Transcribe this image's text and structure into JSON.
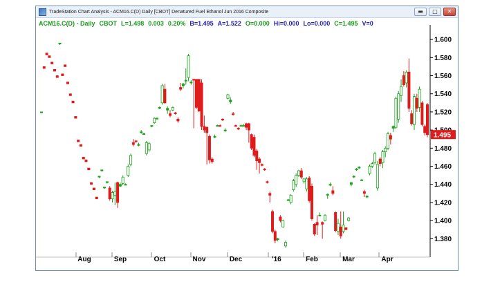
{
  "window": {
    "title": "TradeStation Chart Analysis - ACM16.C(D) Daily [CBOT] Denatured Fuel Ethanol Jun 2016 Composite",
    "controls": {
      "minimize": "▬",
      "maximize": "□",
      "close": "✕"
    }
  },
  "info": {
    "symbol": "ACM16.C(D) - Daily",
    "exchange": "CBOT",
    "last": "L=1.498",
    "change": "0.003",
    "pct": "0.20%",
    "bid": "B=1.495",
    "ask": "A=1.522",
    "open": "O=0.000",
    "high": "Hi=0.000",
    "low": "Lo=0.000",
    "close": "C=1.495",
    "volume": "V=0"
  },
  "colors": {
    "up": "#1aa31a",
    "down": "#e01b1b",
    "last_price_tag": "#e01b1b",
    "axis": "#000000"
  },
  "chart_data": {
    "type": "candlestick",
    "title": "",
    "ylim": [
      1.365,
      1.61
    ],
    "y_ticks": [
      "1.600",
      "1.580",
      "1.560",
      "1.540",
      "1.520",
      "1.500",
      "1.480",
      "1.460",
      "1.440",
      "1.420",
      "1.400",
      "1.380"
    ],
    "x_ticks": [
      "Aug",
      "Sep",
      "Oct",
      "Nov",
      "Dec",
      "'16",
      "Feb",
      "Mar",
      "Apr"
    ],
    "last_price_label": "1.495",
    "bars": [
      {
        "i": 0,
        "o": 1.52,
        "h": 1.52,
        "l": 1.52,
        "c": 1.52
      },
      {
        "i": 1,
        "o": 1.57,
        "h": 1.57,
        "l": 1.568,
        "c": 1.568
      },
      {
        "i": 2,
        "o": 1.585,
        "h": 1.585,
        "l": 1.583,
        "c": 1.583
      },
      {
        "i": 3,
        "o": 1.582,
        "h": 1.582,
        "l": 1.58,
        "c": 1.58
      },
      {
        "i": 4,
        "o": 1.575,
        "h": 1.575,
        "l": 1.573,
        "c": 1.573
      },
      {
        "i": 5,
        "o": 1.567,
        "h": 1.567,
        "l": 1.565,
        "c": 1.565
      },
      {
        "i": 6,
        "o": 1.56,
        "h": 1.56,
        "l": 1.558,
        "c": 1.558
      },
      {
        "i": 7,
        "o": 1.595,
        "h": 1.596,
        "l": 1.594,
        "c": 1.596
      },
      {
        "i": 8,
        "o": 1.562,
        "h": 1.562,
        "l": 1.56,
        "c": 1.56
      },
      {
        "i": 9,
        "o": 1.572,
        "h": 1.572,
        "l": 1.57,
        "c": 1.57
      },
      {
        "i": 10,
        "o": 1.553,
        "h": 1.553,
        "l": 1.551,
        "c": 1.551
      },
      {
        "i": 11,
        "o": 1.54,
        "h": 1.54,
        "l": 1.538,
        "c": 1.538
      },
      {
        "i": 12,
        "o": 1.532,
        "h": 1.532,
        "l": 1.53,
        "c": 1.53
      },
      {
        "i": 13,
        "o": 1.515,
        "h": 1.515,
        "l": 1.513,
        "c": 1.513
      },
      {
        "i": 14,
        "o": 1.489,
        "h": 1.489,
        "l": 1.487,
        "c": 1.487
      },
      {
        "i": 15,
        "o": 1.484,
        "h": 1.484,
        "l": 1.482,
        "c": 1.482
      },
      {
        "i": 16,
        "o": 1.47,
        "h": 1.47,
        "l": 1.468,
        "c": 1.468
      },
      {
        "i": 17,
        "o": 1.467,
        "h": 1.467,
        "l": 1.465,
        "c": 1.465
      },
      {
        "i": 18,
        "o": 1.458,
        "h": 1.458,
        "l": 1.456,
        "c": 1.456
      },
      {
        "i": 19,
        "o": 1.442,
        "h": 1.442,
        "l": 1.44,
        "c": 1.44
      },
      {
        "i": 20,
        "o": 1.436,
        "h": 1.436,
        "l": 1.434,
        "c": 1.434
      },
      {
        "i": 21,
        "o": 1.426,
        "h": 1.426,
        "l": 1.424,
        "c": 1.424
      },
      {
        "i": 22,
        "o": 1.448,
        "h": 1.449,
        "l": 1.447,
        "c": 1.449
      },
      {
        "i": 23,
        "o": 1.455,
        "h": 1.456,
        "l": 1.454,
        "c": 1.456
      },
      {
        "i": 24,
        "o": 1.436,
        "h": 1.437,
        "l": 1.435,
        "c": 1.437
      },
      {
        "i": 25,
        "o": 1.442,
        "h": 1.443,
        "l": 1.441,
        "c": 1.443
      },
      {
        "i": 26,
        "o": 1.436,
        "h": 1.438,
        "l": 1.422,
        "c": 1.424
      },
      {
        "i": 27,
        "o": 1.424,
        "h": 1.433,
        "l": 1.42,
        "c": 1.431
      },
      {
        "i": 28,
        "o": 1.428,
        "h": 1.442,
        "l": 1.417,
        "c": 1.432
      },
      {
        "i": 29,
        "o": 1.442,
        "h": 1.443,
        "l": 1.414,
        "c": 1.42
      },
      {
        "i": 30,
        "o": 1.438,
        "h": 1.442,
        "l": 1.437,
        "c": 1.44
      },
      {
        "i": 31,
        "o": 1.441,
        "h": 1.45,
        "l": 1.439,
        "c": 1.448
      },
      {
        "i": 32,
        "o": 1.44,
        "h": 1.441,
        "l": 1.439,
        "c": 1.44
      },
      {
        "i": 33,
        "o": 1.45,
        "h": 1.462,
        "l": 1.448,
        "c": 1.46
      },
      {
        "i": 34,
        "o": 1.462,
        "h": 1.474,
        "l": 1.46,
        "c": 1.472
      },
      {
        "i": 35,
        "o": 1.486,
        "h": 1.49,
        "l": 1.482,
        "c": 1.484
      },
      {
        "i": 36,
        "o": 1.488,
        "h": 1.489,
        "l": 1.486,
        "c": 1.487
      },
      {
        "i": 37,
        "o": 1.484,
        "h": 1.486,
        "l": 1.482,
        "c": 1.484
      },
      {
        "i": 38,
        "o": 1.498,
        "h": 1.5,
        "l": 1.496,
        "c": 1.498
      },
      {
        "i": 39,
        "o": 1.496,
        "h": 1.497,
        "l": 1.495,
        "c": 1.496
      },
      {
        "i": 40,
        "o": 1.474,
        "h": 1.488,
        "l": 1.472,
        "c": 1.486
      },
      {
        "i": 41,
        "o": 1.478,
        "h": 1.487,
        "l": 1.476,
        "c": 1.485
      },
      {
        "i": 42,
        "o": 1.504,
        "h": 1.505,
        "l": 1.503,
        "c": 1.505
      },
      {
        "i": 43,
        "o": 1.508,
        "h": 1.514,
        "l": 1.507,
        "c": 1.513
      },
      {
        "i": 44,
        "o": 1.513,
        "h": 1.514,
        "l": 1.512,
        "c": 1.513
      },
      {
        "i": 45,
        "o": 1.524,
        "h": 1.526,
        "l": 1.523,
        "c": 1.525
      },
      {
        "i": 46,
        "o": 1.53,
        "h": 1.551,
        "l": 1.528,
        "c": 1.549
      },
      {
        "i": 47,
        "o": 1.545,
        "h": 1.551,
        "l": 1.529,
        "c": 1.53
      },
      {
        "i": 48,
        "o": 1.522,
        "h": 1.526,
        "l": 1.518,
        "c": 1.524
      },
      {
        "i": 49,
        "o": 1.518,
        "h": 1.522,
        "l": 1.514,
        "c": 1.516
      },
      {
        "i": 50,
        "o": 1.522,
        "h": 1.526,
        "l": 1.521,
        "c": 1.525
      },
      {
        "i": 51,
        "o": 1.519,
        "h": 1.52,
        "l": 1.517,
        "c": 1.518
      },
      {
        "i": 52,
        "o": 1.512,
        "h": 1.514,
        "l": 1.508,
        "c": 1.51
      },
      {
        "i": 53,
        "o": 1.547,
        "h": 1.552,
        "l": 1.543,
        "c": 1.545
      },
      {
        "i": 54,
        "o": 1.549,
        "h": 1.552,
        "l": 1.546,
        "c": 1.551
      },
      {
        "i": 55,
        "o": 1.554,
        "h": 1.568,
        "l": 1.55,
        "c": 1.555
      },
      {
        "i": 56,
        "o": 1.558,
        "h": 1.584,
        "l": 1.554,
        "c": 1.582
      },
      {
        "i": 57,
        "o": 1.552,
        "h": 1.555,
        "l": 1.55,
        "c": 1.553
      },
      {
        "i": 58,
        "o": 1.556,
        "h": 1.556,
        "l": 1.502,
        "c": 1.555
      },
      {
        "i": 59,
        "o": 1.556,
        "h": 1.556,
        "l": 1.523,
        "c": 1.525
      },
      {
        "i": 60,
        "o": 1.556,
        "h": 1.556,
        "l": 1.52,
        "c": 1.521
      },
      {
        "i": 61,
        "o": 1.552,
        "h": 1.556,
        "l": 1.5,
        "c": 1.504
      },
      {
        "i": 62,
        "o": 1.504,
        "h": 1.516,
        "l": 1.497,
        "c": 1.5
      },
      {
        "i": 63,
        "o": 1.503,
        "h": 1.504,
        "l": 1.462,
        "c": 1.497
      },
      {
        "i": 64,
        "o": 1.493,
        "h": 1.495,
        "l": 1.463,
        "c": 1.467
      },
      {
        "i": 65,
        "o": 1.468,
        "h": 1.47,
        "l": 1.463,
        "c": 1.465
      },
      {
        "i": 66,
        "o": 1.493,
        "h": 1.495,
        "l": 1.491,
        "c": 1.493
      },
      {
        "i": 67,
        "o": 1.505,
        "h": 1.506,
        "l": 1.504,
        "c": 1.505
      },
      {
        "i": 68,
        "o": 1.505,
        "h": 1.506,
        "l": 1.504,
        "c": 1.504
      },
      {
        "i": 69,
        "o": 1.512,
        "h": 1.513,
        "l": 1.51,
        "c": 1.511
      },
      {
        "i": 70,
        "o": 1.5,
        "h": 1.502,
        "l": 1.498,
        "c": 1.5
      },
      {
        "i": 71,
        "o": 1.535,
        "h": 1.54,
        "l": 1.534,
        "c": 1.539
      },
      {
        "i": 72,
        "o": 1.531,
        "h": 1.536,
        "l": 1.529,
        "c": 1.533
      },
      {
        "i": 73,
        "o": 1.518,
        "h": 1.52,
        "l": 1.516,
        "c": 1.517
      },
      {
        "i": 74,
        "o": 1.505,
        "h": 1.506,
        "l": 1.504,
        "c": 1.504
      },
      {
        "i": 75,
        "o": 1.502,
        "h": 1.503,
        "l": 1.5,
        "c": 1.501
      },
      {
        "i": 76,
        "o": 1.505,
        "h": 1.506,
        "l": 1.504,
        "c": 1.505
      },
      {
        "i": 77,
        "o": 1.505,
        "h": 1.507,
        "l": 1.504,
        "c": 1.505
      },
      {
        "i": 78,
        "o": 1.507,
        "h": 1.508,
        "l": 1.5,
        "c": 1.503
      },
      {
        "i": 79,
        "o": 1.507,
        "h": 1.508,
        "l": 1.486,
        "c": 1.5
      },
      {
        "i": 80,
        "o": 1.495,
        "h": 1.496,
        "l": 1.478,
        "c": 1.48
      },
      {
        "i": 81,
        "o": 1.492,
        "h": 1.495,
        "l": 1.47,
        "c": 1.472
      },
      {
        "i": 82,
        "o": 1.477,
        "h": 1.479,
        "l": 1.456,
        "c": 1.466
      },
      {
        "i": 83,
        "o": 1.468,
        "h": 1.47,
        "l": 1.452,
        "c": 1.464
      },
      {
        "i": 84,
        "o": 1.462,
        "h": 1.463,
        "l": 1.46,
        "c": 1.461
      },
      {
        "i": 85,
        "o": 1.457,
        "h": 1.458,
        "l": 1.455,
        "c": 1.456
      },
      {
        "i": 86,
        "o": 1.443,
        "h": 1.444,
        "l": 1.441,
        "c": 1.442
      },
      {
        "i": 87,
        "o": 1.43,
        "h": 1.432,
        "l": 1.42,
        "c": 1.428
      },
      {
        "i": 88,
        "o": 1.41,
        "h": 1.412,
        "l": 1.386,
        "c": 1.388
      },
      {
        "i": 89,
        "o": 1.388,
        "h": 1.39,
        "l": 1.375,
        "c": 1.378
      },
      {
        "i": 90,
        "o": 1.379,
        "h": 1.381,
        "l": 1.377,
        "c": 1.38
      },
      {
        "i": 91,
        "o": 1.404,
        "h": 1.406,
        "l": 1.398,
        "c": 1.4
      },
      {
        "i": 92,
        "o": 1.393,
        "h": 1.401,
        "l": 1.392,
        "c": 1.4
      },
      {
        "i": 93,
        "o": 1.372,
        "h": 1.378,
        "l": 1.37,
        "c": 1.376
      },
      {
        "i": 94,
        "o": 1.423,
        "h": 1.424,
        "l": 1.422,
        "c": 1.423
      },
      {
        "i": 95,
        "o": 1.42,
        "h": 1.429,
        "l": 1.418,
        "c": 1.428
      },
      {
        "i": 96,
        "o": 1.434,
        "h": 1.446,
        "l": 1.432,
        "c": 1.444
      },
      {
        "i": 97,
        "o": 1.44,
        "h": 1.452,
        "l": 1.437,
        "c": 1.45
      },
      {
        "i": 98,
        "o": 1.45,
        "h": 1.456,
        "l": 1.448,
        "c": 1.455
      },
      {
        "i": 99,
        "o": 1.455,
        "h": 1.458,
        "l": 1.446,
        "c": 1.448
      },
      {
        "i": 100,
        "o": 1.443,
        "h": 1.447,
        "l": 1.441,
        "c": 1.446
      },
      {
        "i": 101,
        "o": 1.435,
        "h": 1.448,
        "l": 1.432,
        "c": 1.446
      },
      {
        "i": 102,
        "o": 1.447,
        "h": 1.449,
        "l": 1.42,
        "c": 1.422
      },
      {
        "i": 103,
        "o": 1.438,
        "h": 1.441,
        "l": 1.4,
        "c": 1.402
      },
      {
        "i": 104,
        "o": 1.396,
        "h": 1.397,
        "l": 1.383,
        "c": 1.385
      },
      {
        "i": 105,
        "o": 1.398,
        "h": 1.406,
        "l": 1.384,
        "c": 1.395
      },
      {
        "i": 106,
        "o": 1.406,
        "h": 1.409,
        "l": 1.405,
        "c": 1.406
      },
      {
        "i": 107,
        "o": 1.398,
        "h": 1.399,
        "l": 1.38,
        "c": 1.396
      },
      {
        "i": 108,
        "o": 1.4,
        "h": 1.407,
        "l": 1.399,
        "c": 1.406
      },
      {
        "i": 109,
        "o": 1.428,
        "h": 1.43,
        "l": 1.424,
        "c": 1.429
      },
      {
        "i": 110,
        "o": 1.44,
        "h": 1.442,
        "l": 1.438,
        "c": 1.44
      },
      {
        "i": 111,
        "o": 1.433,
        "h": 1.438,
        "l": 1.428,
        "c": 1.43
      },
      {
        "i": 112,
        "o": 1.409,
        "h": 1.41,
        "l": 1.387,
        "c": 1.389
      },
      {
        "i": 113,
        "o": 1.388,
        "h": 1.402,
        "l": 1.384,
        "c": 1.397
      },
      {
        "i": 114,
        "o": 1.393,
        "h": 1.41,
        "l": 1.38,
        "c": 1.383
      },
      {
        "i": 115,
        "o": 1.388,
        "h": 1.41,
        "l": 1.386,
        "c": 1.395
      },
      {
        "i": 116,
        "o": 1.392,
        "h": 1.393,
        "l": 1.39,
        "c": 1.39
      },
      {
        "i": 117,
        "o": 1.4,
        "h": 1.404,
        "l": 1.399,
        "c": 1.403
      },
      {
        "i": 118,
        "o": 1.44,
        "h": 1.442,
        "l": 1.438,
        "c": 1.442
      },
      {
        "i": 119,
        "o": 1.449,
        "h": 1.45,
        "l": 1.447,
        "c": 1.449
      },
      {
        "i": 120,
        "o": 1.457,
        "h": 1.458,
        "l": 1.455,
        "c": 1.457
      },
      {
        "i": 121,
        "o": 1.459,
        "h": 1.46,
        "l": 1.457,
        "c": 1.459
      },
      {
        "i": 122,
        "o": 1.445,
        "h": 1.446,
        "l": 1.444,
        "c": 1.445
      },
      {
        "i": 123,
        "o": 1.432,
        "h": 1.434,
        "l": 1.426,
        "c": 1.43
      },
      {
        "i": 124,
        "o": 1.426,
        "h": 1.428,
        "l": 1.425,
        "c": 1.427
      },
      {
        "i": 125,
        "o": 1.452,
        "h": 1.462,
        "l": 1.45,
        "c": 1.46
      },
      {
        "i": 126,
        "o": 1.46,
        "h": 1.465,
        "l": 1.458,
        "c": 1.463
      },
      {
        "i": 127,
        "o": 1.464,
        "h": 1.476,
        "l": 1.462,
        "c": 1.474
      },
      {
        "i": 128,
        "o": 1.436,
        "h": 1.466,
        "l": 1.433,
        "c": 1.462
      },
      {
        "i": 129,
        "o": 1.468,
        "h": 1.47,
        "l": 1.46,
        "c": 1.463
      },
      {
        "i": 130,
        "o": 1.464,
        "h": 1.478,
        "l": 1.458,
        "c": 1.476
      },
      {
        "i": 131,
        "o": 1.476,
        "h": 1.482,
        "l": 1.47,
        "c": 1.48
      },
      {
        "i": 132,
        "o": 1.48,
        "h": 1.498,
        "l": 1.478,
        "c": 1.496
      },
      {
        "i": 133,
        "o": 1.494,
        "h": 1.497,
        "l": 1.484,
        "c": 1.49
      },
      {
        "i": 134,
        "o": 1.502,
        "h": 1.505,
        "l": 1.498,
        "c": 1.504
      },
      {
        "i": 135,
        "o": 1.503,
        "h": 1.537,
        "l": 1.501,
        "c": 1.535
      },
      {
        "i": 136,
        "o": 1.512,
        "h": 1.543,
        "l": 1.508,
        "c": 1.54
      },
      {
        "i": 137,
        "o": 1.538,
        "h": 1.556,
        "l": 1.531,
        "c": 1.548
      },
      {
        "i": 138,
        "o": 1.56,
        "h": 1.565,
        "l": 1.548,
        "c": 1.55
      },
      {
        "i": 139,
        "o": 1.552,
        "h": 1.566,
        "l": 1.547,
        "c": 1.564
      },
      {
        "i": 140,
        "o": 1.564,
        "h": 1.579,
        "l": 1.52,
        "c": 1.524
      },
      {
        "i": 141,
        "o": 1.518,
        "h": 1.522,
        "l": 1.505,
        "c": 1.507
      },
      {
        "i": 142,
        "o": 1.506,
        "h": 1.54,
        "l": 1.5,
        "c": 1.537
      },
      {
        "i": 143,
        "o": 1.535,
        "h": 1.54,
        "l": 1.52,
        "c": 1.524
      },
      {
        "i": 144,
        "o": 1.525,
        "h": 1.548,
        "l": 1.52,
        "c": 1.545
      },
      {
        "i": 145,
        "o": 1.53,
        "h": 1.532,
        "l": 1.504,
        "c": 1.506
      },
      {
        "i": 146,
        "o": 1.504,
        "h": 1.506,
        "l": 1.494,
        "c": 1.497
      },
      {
        "i": 147,
        "o": 1.528,
        "h": 1.53,
        "l": 1.492,
        "c": 1.495
      }
    ]
  }
}
